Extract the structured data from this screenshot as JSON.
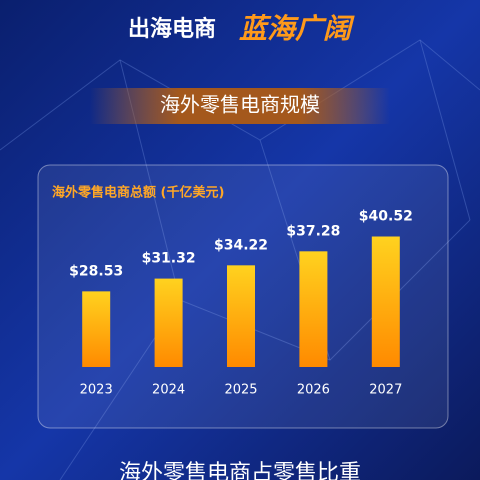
{
  "header": {
    "title_left": "出海电商",
    "title_right": "蓝海广阔",
    "banner": "海外零售电商规模"
  },
  "chart_data": {
    "type": "bar",
    "title": "海外零售电商总额 (千亿美元)",
    "categories": [
      "2023",
      "2024",
      "2025",
      "2026",
      "2027"
    ],
    "values": [
      28.53,
      31.32,
      34.22,
      37.28,
      40.52
    ],
    "value_labels": [
      "$28.53",
      "$31.32",
      "$34.22",
      "$37.28",
      "$40.52"
    ],
    "ylim": [
      12,
      45
    ],
    "color": "#ffb300"
  },
  "footer": {
    "next_title": "海外零售电商占零售比重"
  }
}
